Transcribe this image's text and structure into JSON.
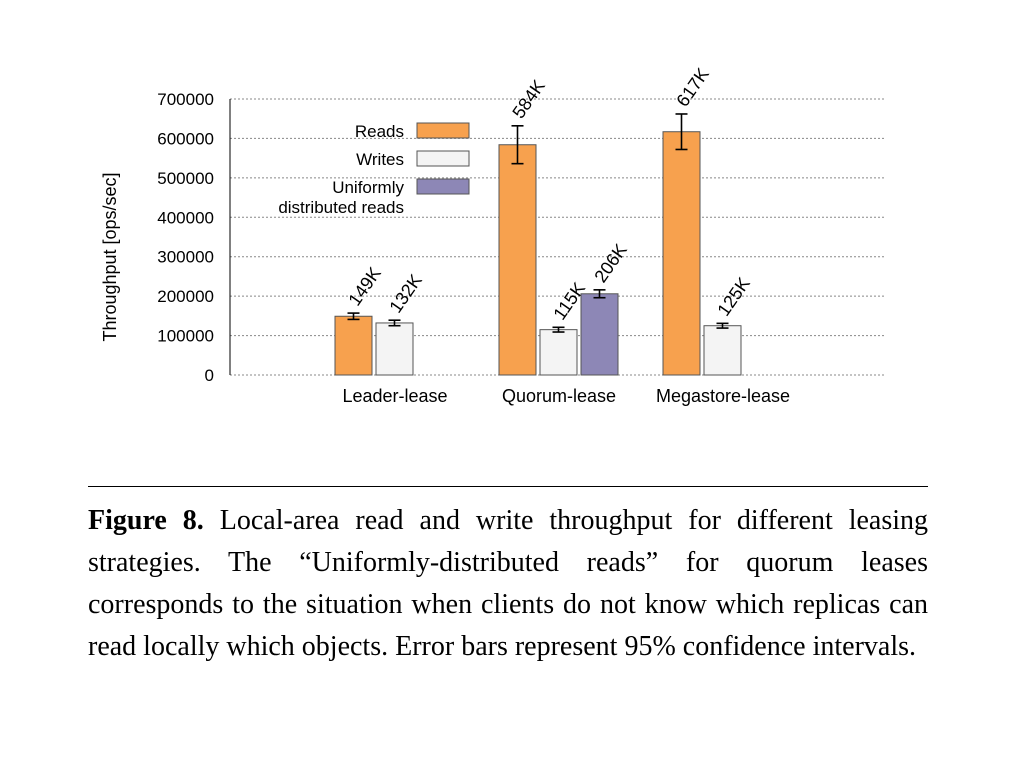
{
  "chart_data": {
    "type": "bar",
    "ylabel": "Throughput [ops/sec]",
    "ylim": [
      0,
      700000
    ],
    "yticks": [
      "0",
      "100000",
      "200000",
      "300000",
      "400000",
      "500000",
      "600000",
      "700000"
    ],
    "grid": true,
    "legend_position": "top-left",
    "categories": [
      "Leader-lease",
      "Quorum-lease",
      "Megastore-lease"
    ],
    "series": [
      {
        "name": "Reads",
        "color": "#f7a14e",
        "values": [
          149000,
          584000,
          617000
        ],
        "errors": [
          8000,
          48000,
          45000
        ],
        "labels": [
          "149K",
          "584K",
          "617K"
        ]
      },
      {
        "name": "Writes",
        "color": "#f4f4f4",
        "values": [
          132000,
          115000,
          125000
        ],
        "errors": [
          7000,
          6000,
          6000
        ],
        "labels": [
          "132K",
          "115K",
          "125K"
        ]
      },
      {
        "name": "Uniformly distributed reads",
        "legend_lines": [
          "Uniformly",
          "distributed reads"
        ],
        "color": "#8d87b6",
        "values": [
          null,
          206000,
          null
        ],
        "errors": [
          null,
          10000,
          null
        ],
        "labels": [
          null,
          "206K",
          null
        ]
      }
    ]
  },
  "caption": {
    "label": "Figure 8.",
    "text": "Local-area read and write throughput for different leasing strategies.  The “Uniformly-distributed reads” for quorum leases corresponds to the situation when clients do not know which replicas can read locally which objects. Error bars represent 95% confidence intervals."
  }
}
